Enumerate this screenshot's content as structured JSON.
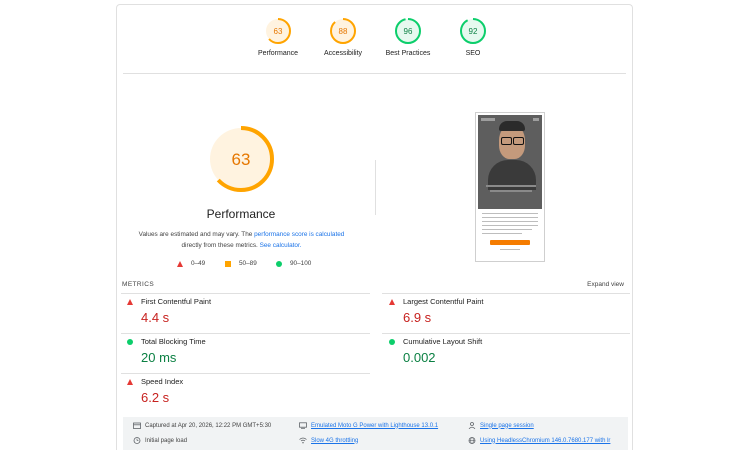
{
  "top_scores": [
    {
      "score": "63",
      "label": "Performance",
      "color": "#ffa400"
    },
    {
      "score": "88",
      "label": "Accessibility",
      "color": "#ffa400"
    },
    {
      "score": "96",
      "label": "Best Practices",
      "color": "#0cce6b"
    },
    {
      "score": "92",
      "label": "SEO",
      "color": "#0cce6b"
    }
  ],
  "main_gauge": {
    "score": "63",
    "fraction": 0.63,
    "title": "Performance",
    "color": "#ffa400"
  },
  "description": {
    "prefix": "Values are estimated and may vary. The ",
    "link1": "performance score is calculated",
    "middle": " directly from these metrics. ",
    "link2": "See calculator."
  },
  "legend": [
    {
      "range": "0–49",
      "shape": "triangle",
      "color": "#e53935"
    },
    {
      "range": "50–89",
      "shape": "square",
      "color": "#ffa400"
    },
    {
      "range": "90–100",
      "shape": "circle",
      "color": "#0cce6b"
    }
  ],
  "metrics_header": "METRICS",
  "expand_view": "Expand view",
  "metrics": [
    {
      "name": "First Contentful Paint",
      "value": "4.4 s",
      "status": "fail"
    },
    {
      "name": "Largest Contentful Paint",
      "value": "6.9 s",
      "status": "fail"
    },
    {
      "name": "Total Blocking Time",
      "value": "20 ms",
      "status": "pass"
    },
    {
      "name": "Cumulative Layout Shift",
      "value": "0.002",
      "status": "pass"
    },
    {
      "name": "Speed Index",
      "value": "6.2 s",
      "status": "fail"
    }
  ],
  "footer": {
    "captured": "Captured at Apr 20, 2026, 12:22 PM GMT+5:30",
    "load": "Initial page load",
    "device": "Emulated Moto G Power with Lighthouse 13.0.1",
    "throttle": "Slow 4G throttling",
    "session": "Single page session",
    "browser": "Using HeadlessChromium 146.0.7680.177 with lr"
  }
}
